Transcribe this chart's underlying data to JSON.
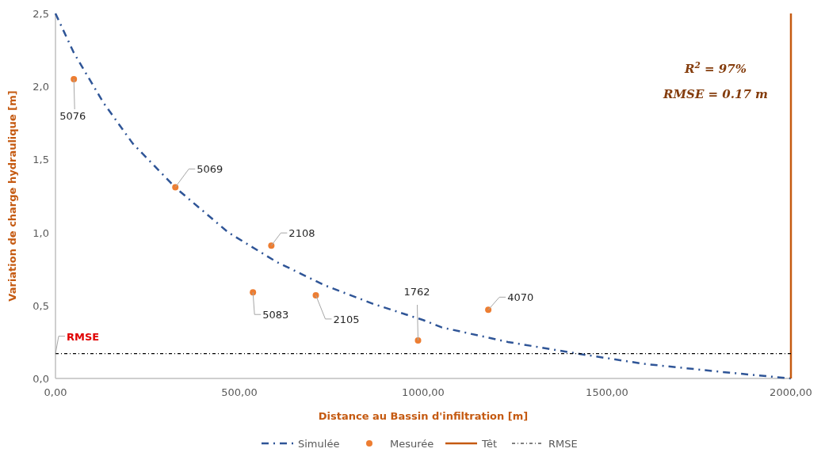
{
  "chart_data": {
    "type": "line",
    "xlabel": "Distance au Bassin d'infiltration [m]",
    "ylabel": "Variation de charge hydraulique [m]",
    "xlim": [
      0,
      2000
    ],
    "xticks": [
      {
        "value": 0,
        "label": "0,00"
      },
      {
        "value": 500,
        "label": "500,00"
      },
      {
        "value": 1000,
        "label": "1000,00"
      },
      {
        "value": 1500,
        "label": "1500,00"
      },
      {
        "value": 2000,
        "label": "2000,00"
      }
    ],
    "ylim": [
      0,
      2.5
    ],
    "yticks": [
      {
        "value": 0,
        "label": "0,0"
      },
      {
        "value": 0.5,
        "label": "0,5"
      },
      {
        "value": 1,
        "label": "1,0"
      },
      {
        "value": 1.5,
        "label": "1,5"
      },
      {
        "value": 2,
        "label": "2,0"
      },
      {
        "value": 2.5,
        "label": "2,5"
      }
    ],
    "grid": false,
    "legend": "bottom",
    "series": [
      {
        "name": "Simulée",
        "line_style": "dashed",
        "color": "#2f5597",
        "x": [
          0,
          50,
          130,
          210,
          325,
          470,
          600,
          730,
          865,
          1000,
          1050,
          1230,
          1420,
          1600,
          1810,
          2000
        ],
        "values": [
          2.5,
          2.23,
          1.89,
          1.61,
          1.31,
          1.0,
          0.8,
          0.64,
          0.51,
          0.4,
          0.35,
          0.25,
          0.17,
          0.1,
          0.045,
          0
        ]
      },
      {
        "name": "Mesurée",
        "type": "scatter",
        "marker": "circle",
        "color": "#ed7d31",
        "x": [
          50,
          326,
          587,
          537,
          708,
          986,
          1177
        ],
        "values": [
          2.05,
          1.31,
          0.91,
          0.59,
          0.57,
          0.26,
          0.47
        ]
      },
      {
        "name": "Têt",
        "line_style": "solid",
        "color": "#c55a11",
        "x": [
          2000,
          2000
        ],
        "values": [
          0,
          2.5
        ]
      },
      {
        "name": "RMSE",
        "line_style": "dashed",
        "color": "#000000",
        "x": [
          0,
          2000
        ],
        "values": [
          0.17,
          0.17
        ]
      }
    ],
    "annotations": [
      {
        "text": "5076",
        "x": 50,
        "y": 2.05
      },
      {
        "text": "5069",
        "x": 326,
        "y": 1.31
      },
      {
        "text": "2108",
        "x": 587,
        "y": 0.91
      },
      {
        "text": "5083",
        "x": 537,
        "y": 0.59
      },
      {
        "text": "2105",
        "x": 708,
        "y": 0.57
      },
      {
        "text": "1762",
        "x": 986,
        "y": 0.26
      },
      {
        "text": "4070",
        "x": 1177,
        "y": 0.47
      },
      {
        "text": "RMSE",
        "x": 0,
        "y": 0.17
      },
      "R$^{2}$ = 97%",
      "RMSE = 0.17 m"
    ]
  }
}
